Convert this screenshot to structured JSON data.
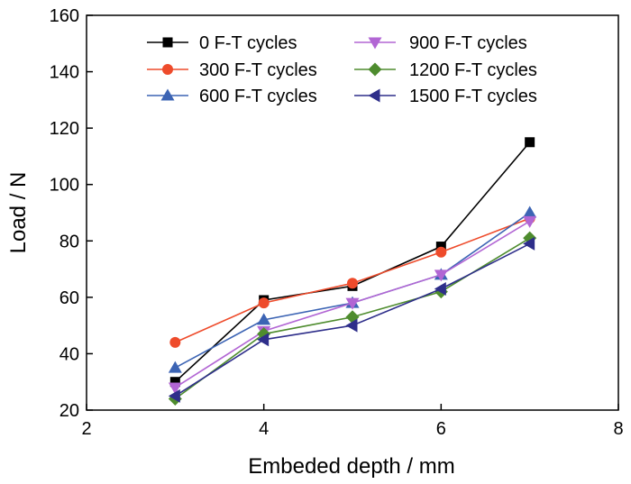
{
  "chart_data": {
    "type": "line",
    "xlabel": "Embeded depth  / mm",
    "ylabel": "Load / N",
    "xlim": [
      2,
      8
    ],
    "ylim": [
      20,
      160
    ],
    "xticks": [
      2,
      4,
      6,
      8
    ],
    "yticks": [
      20,
      40,
      60,
      80,
      100,
      120,
      140,
      160
    ],
    "grid": false,
    "legend_position": "top",
    "x": [
      3,
      4,
      5,
      6,
      7
    ],
    "series": [
      {
        "name": "0 F-T cycles",
        "color": "#000000",
        "marker": "square",
        "values": [
          30,
          59,
          64,
          78,
          115
        ]
      },
      {
        "name": "300 F-T cycles",
        "color": "#ee4b2b",
        "marker": "circle",
        "values": [
          44,
          58,
          65,
          76,
          88
        ]
      },
      {
        "name": "600 F-T cycles",
        "color": "#3c64b4",
        "marker": "triangle-up",
        "values": [
          35,
          52,
          58,
          68,
          90
        ]
      },
      {
        "name": "900 F-T cycles",
        "color": "#b266d4",
        "marker": "triangle-down",
        "values": [
          28,
          48,
          58,
          68,
          87
        ]
      },
      {
        "name": "1200 F-T cycles",
        "color": "#4e8c2e",
        "marker": "diamond",
        "values": [
          24,
          47,
          53,
          62,
          81
        ]
      },
      {
        "name": "1500 F-T cycles",
        "color": "#2e2e8a",
        "marker": "triangle-left",
        "values": [
          25,
          45,
          50,
          63,
          79
        ]
      }
    ]
  }
}
